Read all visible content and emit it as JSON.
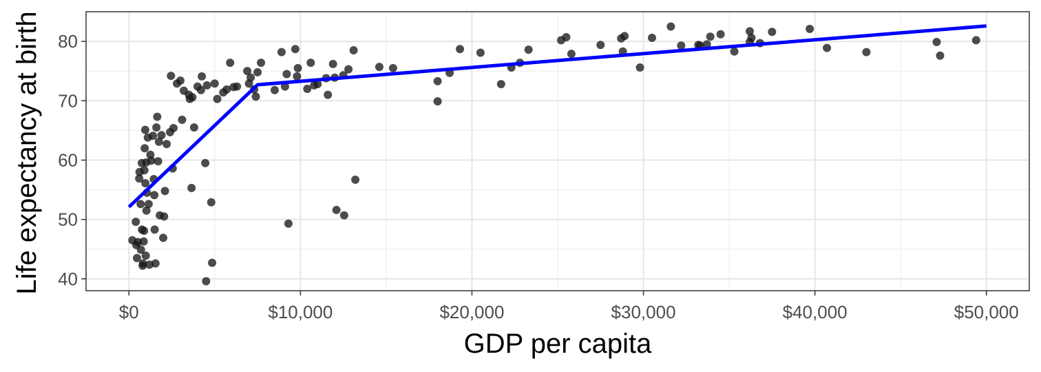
{
  "chart_data": {
    "type": "scatter",
    "title": "",
    "xlabel": "GDP per capita",
    "ylabel": "Life expectancy at birth",
    "xlim": [
      -2500,
      52500
    ],
    "ylim": [
      38,
      85
    ],
    "x_ticks": [
      0,
      10000,
      20000,
      30000,
      40000,
      50000
    ],
    "x_tick_labels": [
      "$0",
      "$10,000",
      "$20,000",
      "$30,000",
      "$40,000",
      "$50,000"
    ],
    "y_ticks": [
      40,
      50,
      60,
      70,
      80
    ],
    "y_tick_labels": [
      "40",
      "50",
      "60",
      "70",
      "80"
    ],
    "grid": true,
    "points": [
      [
        200,
        46.5
      ],
      [
        400,
        49.6
      ],
      [
        430,
        45.7
      ],
      [
        470,
        43.5
      ],
      [
        520,
        46.2
      ],
      [
        600,
        56.9
      ],
      [
        620,
        58.0
      ],
      [
        680,
        52.6
      ],
      [
        700,
        44.9
      ],
      [
        750,
        59.5
      ],
      [
        760,
        48.3
      ],
      [
        800,
        42.2
      ],
      [
        820,
        42.6
      ],
      [
        860,
        46.3
      ],
      [
        880,
        48.1
      ],
      [
        900,
        58.3
      ],
      [
        920,
        62.0
      ],
      [
        950,
        65.1
      ],
      [
        960,
        56.1
      ],
      [
        980,
        43.9
      ],
      [
        1000,
        59.6
      ],
      [
        1020,
        51.5
      ],
      [
        1050,
        54.5
      ],
      [
        1100,
        63.8
      ],
      [
        1150,
        52.6
      ],
      [
        1200,
        42.4
      ],
      [
        1250,
        60.9
      ],
      [
        1300,
        59.9
      ],
      [
        1400,
        64.1
      ],
      [
        1450,
        56.8
      ],
      [
        1480,
        54.1
      ],
      [
        1500,
        48.3
      ],
      [
        1550,
        42.6
      ],
      [
        1600,
        65.5
      ],
      [
        1650,
        67.3
      ],
      [
        1700,
        59.8
      ],
      [
        1750,
        63.1
      ],
      [
        1800,
        50.7
      ],
      [
        1900,
        64.2
      ],
      [
        2000,
        46.9
      ],
      [
        2050,
        50.5
      ],
      [
        2100,
        54.8
      ],
      [
        2200,
        62.7
      ],
      [
        2400,
        64.7
      ],
      [
        2450,
        74.2
      ],
      [
        2550,
        58.6
      ],
      [
        2600,
        65.4
      ],
      [
        2800,
        72.9
      ],
      [
        3000,
        73.4
      ],
      [
        3100,
        66.8
      ],
      [
        3200,
        71.7
      ],
      [
        3500,
        71.0
      ],
      [
        3550,
        70.3
      ],
      [
        3650,
        55.3
      ],
      [
        3700,
        70.6
      ],
      [
        3800,
        65.5
      ],
      [
        4000,
        72.4
      ],
      [
        4200,
        71.8
      ],
      [
        4250,
        74.1
      ],
      [
        4450,
        59.5
      ],
      [
        4500,
        39.6
      ],
      [
        4550,
        72.6
      ],
      [
        4800,
        52.9
      ],
      [
        4850,
        42.7
      ],
      [
        5000,
        72.9
      ],
      [
        5150,
        70.3
      ],
      [
        5500,
        71.4
      ],
      [
        5700,
        71.9
      ],
      [
        5900,
        76.4
      ],
      [
        6100,
        72.3
      ],
      [
        6300,
        72.4
      ],
      [
        6900,
        75.0
      ],
      [
        7000,
        72.9
      ],
      [
        7100,
        73.9
      ],
      [
        7300,
        71.9
      ],
      [
        7400,
        70.7
      ],
      [
        7500,
        74.8
      ],
      [
        7700,
        76.4
      ],
      [
        8500,
        71.8
      ],
      [
        8900,
        78.2
      ],
      [
        9100,
        72.4
      ],
      [
        9200,
        74.5
      ],
      [
        9300,
        49.3
      ],
      [
        9700,
        78.7
      ],
      [
        9800,
        74.1
      ],
      [
        9850,
        75.5
      ],
      [
        10400,
        72.0
      ],
      [
        10600,
        76.4
      ],
      [
        10800,
        72.6
      ],
      [
        11000,
        72.8
      ],
      [
        11500,
        73.8
      ],
      [
        11600,
        71.0
      ],
      [
        11900,
        76.2
      ],
      [
        12000,
        73.9
      ],
      [
        12100,
        51.6
      ],
      [
        12500,
        74.3
      ],
      [
        12550,
        50.7
      ],
      [
        12800,
        75.3
      ],
      [
        13100,
        78.5
      ],
      [
        13200,
        56.7
      ],
      [
        14600,
        75.7
      ],
      [
        15400,
        75.5
      ],
      [
        18000,
        73.3
      ],
      [
        18000,
        69.9
      ],
      [
        18700,
        74.7
      ],
      [
        19300,
        78.7
      ],
      [
        20500,
        78.1
      ],
      [
        21700,
        72.8
      ],
      [
        22300,
        75.6
      ],
      [
        22800,
        76.4
      ],
      [
        23300,
        78.6
      ],
      [
        25200,
        80.2
      ],
      [
        25500,
        80.7
      ],
      [
        25800,
        77.9
      ],
      [
        27500,
        79.4
      ],
      [
        28700,
        80.5
      ],
      [
        28800,
        78.3
      ],
      [
        28900,
        80.9
      ],
      [
        29800,
        75.6
      ],
      [
        30500,
        80.6
      ],
      [
        31600,
        82.5
      ],
      [
        32200,
        79.3
      ],
      [
        33200,
        79.4
      ],
      [
        33300,
        79.3
      ],
      [
        33700,
        79.5
      ],
      [
        33900,
        80.8
      ],
      [
        34500,
        81.2
      ],
      [
        35300,
        78.3
      ],
      [
        36200,
        79.9
      ],
      [
        36200,
        81.7
      ],
      [
        36300,
        80.6
      ],
      [
        36800,
        79.7
      ],
      [
        37500,
        81.6
      ],
      [
        39700,
        82.1
      ],
      [
        40700,
        78.9
      ],
      [
        43000,
        78.2
      ],
      [
        47100,
        79.9
      ],
      [
        47300,
        77.6
      ],
      [
        49400,
        80.2
      ]
    ],
    "fit_line": {
      "color": "#0000ff",
      "x": [
        0,
        7500,
        50000
      ],
      "y": [
        52.1,
        72.7,
        82.6
      ]
    },
    "point_color": "#1a1a1a"
  }
}
